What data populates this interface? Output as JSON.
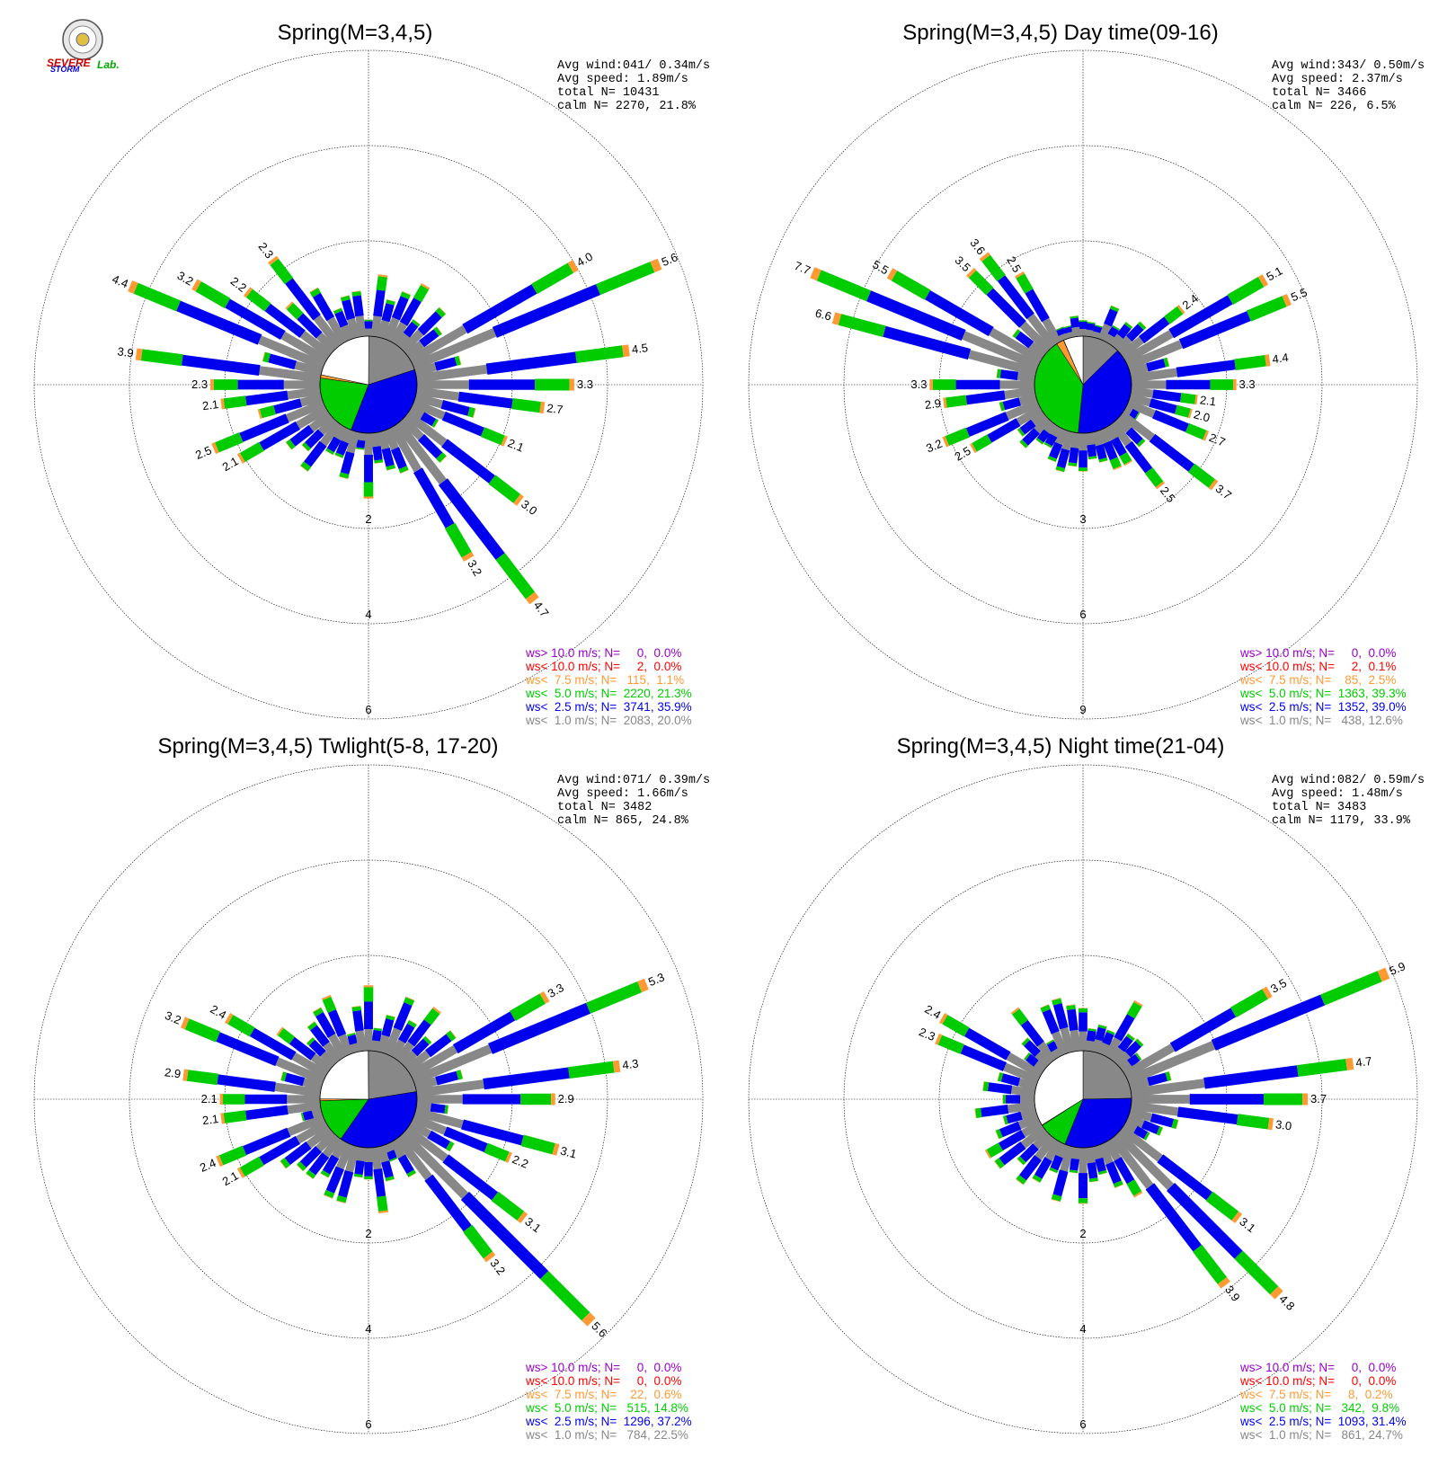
{
  "logo": {
    "word1": "SEVERE",
    "word2": "STORM",
    "word3": "Lab."
  },
  "colors": {
    "gt10": "#9900cc",
    "lt10": "#ff0000",
    "lt75": "#ff9933",
    "lt5": "#00cc00",
    "lt25": "#0000ee",
    "lt1": "#888888",
    "calm": "#ffffff"
  },
  "chart_data": [
    {
      "type": "windrose",
      "title": "Spring(M=3,4,5)",
      "stats": [
        "Avg wind:041/ 0.34m/s",
        "Avg speed: 1.89m/s",
        "total N=      10431",
        "calm N=   2270,  21.8%"
      ],
      "rings": [
        2,
        4,
        6
      ],
      "ring_labels": [
        "2",
        "4",
        "6"
      ],
      "rmax": 6,
      "long_labels": [
        {
          "dir": 60,
          "value": 4.0
        },
        {
          "dir": 67.5,
          "value": 5.6
        },
        {
          "dir": 80,
          "value": 4.5
        },
        {
          "dir": 90,
          "value": 3.3
        },
        {
          "dir": 100,
          "value": 2.7
        },
        {
          "dir": 112.5,
          "value": 2.1
        },
        {
          "dir": 125,
          "value": 3.0
        },
        {
          "dir": 140,
          "value": 4.7
        },
        {
          "dir": 147.5,
          "value": 3.2
        },
        {
          "dir": 240,
          "value": 2.1
        },
        {
          "dir": 250,
          "value": 2.5
        },
        {
          "dir": 260,
          "value": 2.1
        },
        {
          "dir": 270,
          "value": 2.3
        },
        {
          "dir": 280,
          "value": 3.9
        },
        {
          "dir": 290,
          "value": 4.4
        },
        {
          "dir": 300,
          "value": 3.2
        },
        {
          "dir": 310,
          "value": 2.2
        },
        {
          "dir": 320,
          "value": 2.3
        }
      ],
      "pie": [
        {
          "bin": "lt1",
          "pct": 20.0
        },
        {
          "bin": "lt25",
          "pct": 35.9
        },
        {
          "bin": "lt5",
          "pct": 21.3
        },
        {
          "bin": "lt75",
          "pct": 1.1
        },
        {
          "bin": "lt10",
          "pct": 0.0
        },
        {
          "bin": "calm",
          "pct": 21.8
        }
      ],
      "legend": [
        {
          "bin": "gt10",
          "text": "ws> 10.0 m/s; N=     0,  0.0%"
        },
        {
          "bin": "lt10",
          "text": "ws< 10.0 m/s; N=     2,  0.0%"
        },
        {
          "bin": "lt75",
          "text": "ws<  7.5 m/s; N=   115,  1.1%"
        },
        {
          "bin": "lt5",
          "text": "ws<  5.0 m/s; N=  2220, 21.3%"
        },
        {
          "bin": "lt25",
          "text": "ws<  2.5 m/s; N=  3741, 35.9%"
        },
        {
          "bin": "lt1",
          "text": "ws<  1.0 m/s; N=  2083, 20.0%"
        }
      ]
    },
    {
      "type": "windrose",
      "title": "Spring(M=3,4,5) Day time(09-16)",
      "stats": [
        "Avg wind:343/ 0.50m/s",
        "Avg speed: 2.37m/s",
        "total N=       3466",
        "calm N=    226,   6.5%"
      ],
      "rings": [
        3,
        6,
        9
      ],
      "ring_labels": [
        "3",
        "6",
        "9"
      ],
      "rmax": 9,
      "long_labels": [
        {
          "dir": 55,
          "value": 2.4
        },
        {
          "dir": 62.5,
          "value": 5.1
        },
        {
          "dir": 70,
          "value": 5.5
        },
        {
          "dir": 80,
          "value": 4.4
        },
        {
          "dir": 90,
          "value": 3.3
        },
        {
          "dir": 100,
          "value": 2.1
        },
        {
          "dir": 105,
          "value": 2.0
        },
        {
          "dir": 115,
          "value": 2.7
        },
        {
          "dir": 125,
          "value": 3.7
        },
        {
          "dir": 145,
          "value": 2.5
        },
        {
          "dir": 240,
          "value": 2.5
        },
        {
          "dir": 250,
          "value": 3.2
        },
        {
          "dir": 260,
          "value": 2.9
        },
        {
          "dir": 270,
          "value": 3.3
        },
        {
          "dir": 282.5,
          "value": 6.6
        },
        {
          "dir": 292.5,
          "value": 7.7
        },
        {
          "dir": 302.5,
          "value": 5.5
        },
        {
          "dir": 315,
          "value": 3.5
        },
        {
          "dir": 322.5,
          "value": 3.6
        },
        {
          "dir": 332.5,
          "value": 2.5
        }
      ],
      "pie": [
        {
          "bin": "lt1",
          "pct": 12.6
        },
        {
          "bin": "lt25",
          "pct": 39.0
        },
        {
          "bin": "lt5",
          "pct": 39.3
        },
        {
          "bin": "lt75",
          "pct": 2.5
        },
        {
          "bin": "lt10",
          "pct": 0.1
        },
        {
          "bin": "calm",
          "pct": 6.5
        }
      ],
      "legend": [
        {
          "bin": "gt10",
          "text": "ws> 10.0 m/s; N=     0,  0.0%"
        },
        {
          "bin": "lt10",
          "text": "ws< 10.0 m/s; N=     2,  0.1%"
        },
        {
          "bin": "lt75",
          "text": "ws<  7.5 m/s; N=    85,  2.5%"
        },
        {
          "bin": "lt5",
          "text": "ws<  5.0 m/s; N=  1363, 39.3%"
        },
        {
          "bin": "lt25",
          "text": "ws<  2.5 m/s; N=  1352, 39.0%"
        },
        {
          "bin": "lt1",
          "text": "ws<  1.0 m/s; N=   438, 12.6%"
        }
      ]
    },
    {
      "type": "windrose",
      "title": "Spring(M=3,4,5) Twlight(5-8, 17-20)",
      "stats": [
        "Avg wind:071/ 0.39m/s",
        "Avg speed: 1.66m/s",
        "total N=       3482",
        "calm N=    865,  24.8%"
      ],
      "rings": [
        2,
        4,
        6
      ],
      "ring_labels": [
        "2",
        "4",
        "6"
      ],
      "rmax": 6,
      "long_labels": [
        {
          "dir": 60,
          "value": 3.3
        },
        {
          "dir": 67.5,
          "value": 5.3
        },
        {
          "dir": 80,
          "value": 4.3
        },
        {
          "dir": 92.5,
          "value": 2.9
        },
        {
          "dir": 102.5,
          "value": 3.1
        },
        {
          "dir": 112.5,
          "value": 2.2
        },
        {
          "dir": 125,
          "value": 3.1
        },
        {
          "dir": 137.5,
          "value": 5.6
        },
        {
          "dir": 145,
          "value": 3.2
        },
        {
          "dir": 240,
          "value": 2.1
        },
        {
          "dir": 250,
          "value": 2.4
        },
        {
          "dir": 260,
          "value": 2.1
        },
        {
          "dir": 267.5,
          "value": 2.1
        },
        {
          "dir": 280,
          "value": 2.9
        },
        {
          "dir": 290,
          "value": 3.2
        },
        {
          "dir": 302.5,
          "value": 2.4
        }
      ],
      "pie": [
        {
          "bin": "lt1",
          "pct": 22.5
        },
        {
          "bin": "lt25",
          "pct": 37.2
        },
        {
          "bin": "lt5",
          "pct": 14.8
        },
        {
          "bin": "lt75",
          "pct": 0.6
        },
        {
          "bin": "lt10",
          "pct": 0.0
        },
        {
          "bin": "calm",
          "pct": 24.8
        }
      ],
      "legend": [
        {
          "bin": "gt10",
          "text": "ws> 10.0 m/s; N=     0,  0.0%"
        },
        {
          "bin": "lt10",
          "text": "ws< 10.0 m/s; N=     0,  0.0%"
        },
        {
          "bin": "lt75",
          "text": "ws<  7.5 m/s; N=    22,  0.6%"
        },
        {
          "bin": "lt5",
          "text": "ws<  5.0 m/s; N=   515, 14.8%"
        },
        {
          "bin": "lt25",
          "text": "ws<  2.5 m/s; N=  1296, 37.2%"
        },
        {
          "bin": "lt1",
          "text": "ws<  1.0 m/s; N=   784, 22.5%"
        }
      ]
    },
    {
      "type": "windrose",
      "title": "Spring(M=3,4,5) Night time(21-04)",
      "stats": [
        "Avg wind:082/ 0.59m/s",
        "Avg speed: 1.48m/s",
        "total N=       3483",
        "calm N=   1179,  33.9%"
      ],
      "rings": [
        2,
        4,
        6
      ],
      "ring_labels": [
        "2",
        "4",
        "6"
      ],
      "rmax": 6,
      "long_labels": [
        {
          "dir": 60,
          "value": 3.5
        },
        {
          "dir": 67.5,
          "value": 5.9
        },
        {
          "dir": 80,
          "value": 4.7
        },
        {
          "dir": 90,
          "value": 3.7
        },
        {
          "dir": 100,
          "value": 3.0
        },
        {
          "dir": 125,
          "value": 3.1
        },
        {
          "dir": 137.5,
          "value": 4.8
        },
        {
          "dir": 145,
          "value": 3.9
        },
        {
          "dir": 290,
          "value": 2.3
        },
        {
          "dir": 300,
          "value": 2.4
        }
      ],
      "pie": [
        {
          "bin": "lt1",
          "pct": 24.7
        },
        {
          "bin": "lt25",
          "pct": 31.4
        },
        {
          "bin": "lt5",
          "pct": 9.8
        },
        {
          "bin": "lt75",
          "pct": 0.2
        },
        {
          "bin": "lt10",
          "pct": 0.0
        },
        {
          "bin": "calm",
          "pct": 33.9
        }
      ],
      "legend": [
        {
          "bin": "gt10",
          "text": "ws> 10.0 m/s; N=     0,  0.0%"
        },
        {
          "bin": "lt10",
          "text": "ws< 10.0 m/s; N=     0,  0.0%"
        },
        {
          "bin": "lt75",
          "text": "ws<  7.5 m/s; N=     8,  0.2%"
        },
        {
          "bin": "lt5",
          "text": "ws<  5.0 m/s; N=   342,  9.8%"
        },
        {
          "bin": "lt25",
          "text": "ws<  2.5 m/s; N=  1093, 31.4%"
        },
        {
          "bin": "lt1",
          "text": "ws<  1.0 m/s; N=   861, 24.7%"
        }
      ]
    }
  ]
}
